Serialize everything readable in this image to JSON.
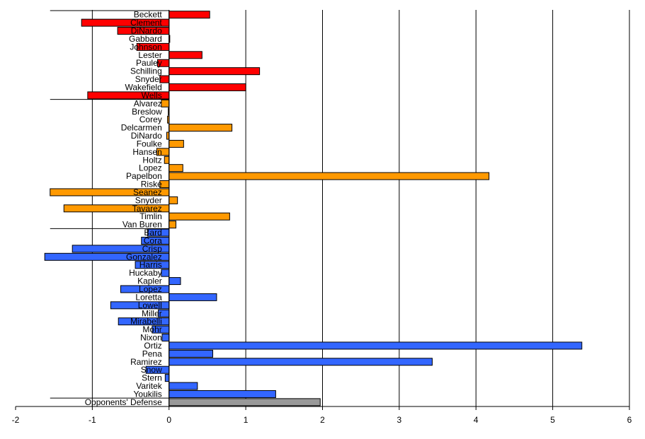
{
  "chart_data": {
    "type": "bar",
    "orientation": "horizontal",
    "title": "",
    "xlabel": "",
    "ylabel": "",
    "xlim": [
      -2,
      6
    ],
    "xticks": [
      "-2",
      "-1",
      "0",
      "1",
      "2",
      "3",
      "4",
      "5",
      "6"
    ],
    "grid": "vertical-major",
    "legend": "none",
    "colors": {
      "group1": "#ff0000",
      "group2": "#ff9900",
      "group3": "#3366ff",
      "group4": "#999999"
    },
    "groups": [
      {
        "color_key": "group1",
        "items": [
          {
            "name": "Beckett",
            "value": 0.53
          },
          {
            "name": "Clement",
            "value": -1.14
          },
          {
            "name": "DiNardo",
            "value": -0.67
          },
          {
            "name": "Gabbard",
            "value": 0.01
          },
          {
            "name": "Johnson",
            "value": -0.42
          },
          {
            "name": "Lester",
            "value": 0.43
          },
          {
            "name": "Pauley",
            "value": -0.15
          },
          {
            "name": "Schilling",
            "value": 1.18
          },
          {
            "name": "Snyder",
            "value": -0.12
          },
          {
            "name": "Wakefield",
            "value": 1.0
          },
          {
            "name": "Wells",
            "value": -1.06
          }
        ]
      },
      {
        "color_key": "group2",
        "items": [
          {
            "name": "Alvarez",
            "value": -0.1
          },
          {
            "name": "Breslow",
            "value": -0.01
          },
          {
            "name": "Corey",
            "value": -0.02
          },
          {
            "name": "Delcarmen",
            "value": 0.82
          },
          {
            "name": "DiNardo",
            "value": -0.03
          },
          {
            "name": "Foulke",
            "value": 0.19
          },
          {
            "name": "Hansen",
            "value": -0.16
          },
          {
            "name": "Holtz",
            "value": -0.06
          },
          {
            "name": "Lopez",
            "value": 0.18
          },
          {
            "name": "Papelbon",
            "value": 4.17
          },
          {
            "name": "Riske",
            "value": -0.12
          },
          {
            "name": "Seanez",
            "value": -1.55
          },
          {
            "name": "Snyder",
            "value": 0.11
          },
          {
            "name": "Tavarez",
            "value": -1.37
          },
          {
            "name": "Timlin",
            "value": 0.79
          },
          {
            "name": "Van Buren",
            "value": 0.09
          }
        ]
      },
      {
        "color_key": "group3",
        "items": [
          {
            "name": "Bard",
            "value": -0.28
          },
          {
            "name": "Cora",
            "value": -0.36
          },
          {
            "name": "Crisp",
            "value": -1.26
          },
          {
            "name": "Gonzalez",
            "value": -1.62
          },
          {
            "name": "Harris",
            "value": -0.44
          },
          {
            "name": "Huckaby",
            "value": -0.1
          },
          {
            "name": "Kapler",
            "value": 0.15
          },
          {
            "name": "Lopez",
            "value": -0.63
          },
          {
            "name": "Loretta",
            "value": 0.62
          },
          {
            "name": "Lowell",
            "value": -0.76
          },
          {
            "name": "Miller",
            "value": -0.14
          },
          {
            "name": "Mirabelli",
            "value": -0.66
          },
          {
            "name": "Mohr",
            "value": -0.22
          },
          {
            "name": "Nixon",
            "value": -0.09
          },
          {
            "name": "Ortiz",
            "value": 5.38
          },
          {
            "name": "Pena",
            "value": 0.57
          },
          {
            "name": "Ramirez",
            "value": 3.43
          },
          {
            "name": "Snow",
            "value": -0.3
          },
          {
            "name": "Stern",
            "value": -0.05
          },
          {
            "name": "Varitek",
            "value": 0.37
          },
          {
            "name": "Youkilis",
            "value": 1.39
          }
        ]
      },
      {
        "color_key": "group4",
        "items": [
          {
            "name": "Opponents' Defense",
            "value": 1.97
          }
        ]
      }
    ]
  }
}
